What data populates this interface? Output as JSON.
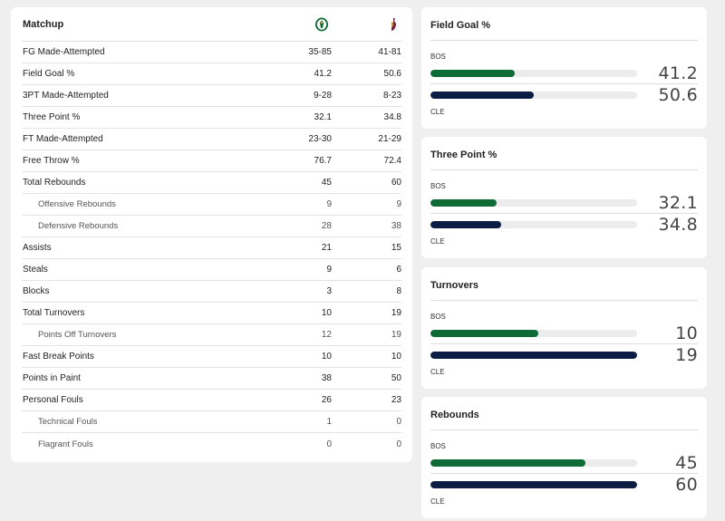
{
  "colors": {
    "bos": "#0e6b35",
    "cle": "#0c1d44"
  },
  "matchup": {
    "header": "Matchup",
    "away_logo": "celtics-logo-icon",
    "home_logo": "cavaliers-logo-icon",
    "rows": [
      {
        "label": "FG Made-Attempted",
        "bos": "35-85",
        "cle": "41-81",
        "sub": false
      },
      {
        "label": "Field Goal %",
        "bos": "41.2",
        "cle": "50.6",
        "sub": false
      },
      {
        "label": "3PT Made-Attempted",
        "bos": "9-28",
        "cle": "8-23",
        "sub": false
      },
      {
        "label": "Three Point %",
        "bos": "32.1",
        "cle": "34.8",
        "sub": false
      },
      {
        "label": "FT Made-Attempted",
        "bos": "23-30",
        "cle": "21-29",
        "sub": false
      },
      {
        "label": "Free Throw %",
        "bos": "76.7",
        "cle": "72.4",
        "sub": false
      },
      {
        "label": "Total Rebounds",
        "bos": "45",
        "cle": "60",
        "sub": false
      },
      {
        "label": "Offensive Rebounds",
        "bos": "9",
        "cle": "9",
        "sub": true
      },
      {
        "label": "Defensive Rebounds",
        "bos": "28",
        "cle": "38",
        "sub": true
      },
      {
        "label": "Assists",
        "bos": "21",
        "cle": "15",
        "sub": false
      },
      {
        "label": "Steals",
        "bos": "9",
        "cle": "6",
        "sub": false
      },
      {
        "label": "Blocks",
        "bos": "3",
        "cle": "8",
        "sub": false
      },
      {
        "label": "Total Turnovers",
        "bos": "10",
        "cle": "19",
        "sub": false
      },
      {
        "label": "Points Off Turnovers",
        "bos": "12",
        "cle": "19",
        "sub": true
      },
      {
        "label": "Fast Break Points",
        "bos": "10",
        "cle": "10",
        "sub": false
      },
      {
        "label": "Points in Paint",
        "bos": "38",
        "cle": "50",
        "sub": false
      },
      {
        "label": "Personal Fouls",
        "bos": "26",
        "cle": "23",
        "sub": false
      },
      {
        "label": "Technical Fouls",
        "bos": "1",
        "cle": "0",
        "sub": true
      },
      {
        "label": "Flagrant Fouls",
        "bos": "0",
        "cle": "0",
        "sub": true
      }
    ]
  },
  "stat_cards": [
    {
      "title": "Field Goal %",
      "bos_tag": "BOS",
      "cle_tag": "CLE",
      "bos_value": "41.2",
      "cle_value": "50.6",
      "bos_fill": 0.41,
      "cle_fill": 0.5
    },
    {
      "title": "Three Point %",
      "bos_tag": "BOS",
      "cle_tag": "CLE",
      "bos_value": "32.1",
      "cle_value": "34.8",
      "bos_fill": 0.32,
      "cle_fill": 0.34
    },
    {
      "title": "Turnovers",
      "bos_tag": "BOS",
      "cle_tag": "CLE",
      "bos_value": "10",
      "cle_value": "19",
      "bos_fill": 0.52,
      "cle_fill": 1.0
    },
    {
      "title": "Rebounds",
      "bos_tag": "BOS",
      "cle_tag": "CLE",
      "bos_value": "45",
      "cle_value": "60",
      "bos_fill": 0.75,
      "cle_fill": 1.0
    }
  ]
}
